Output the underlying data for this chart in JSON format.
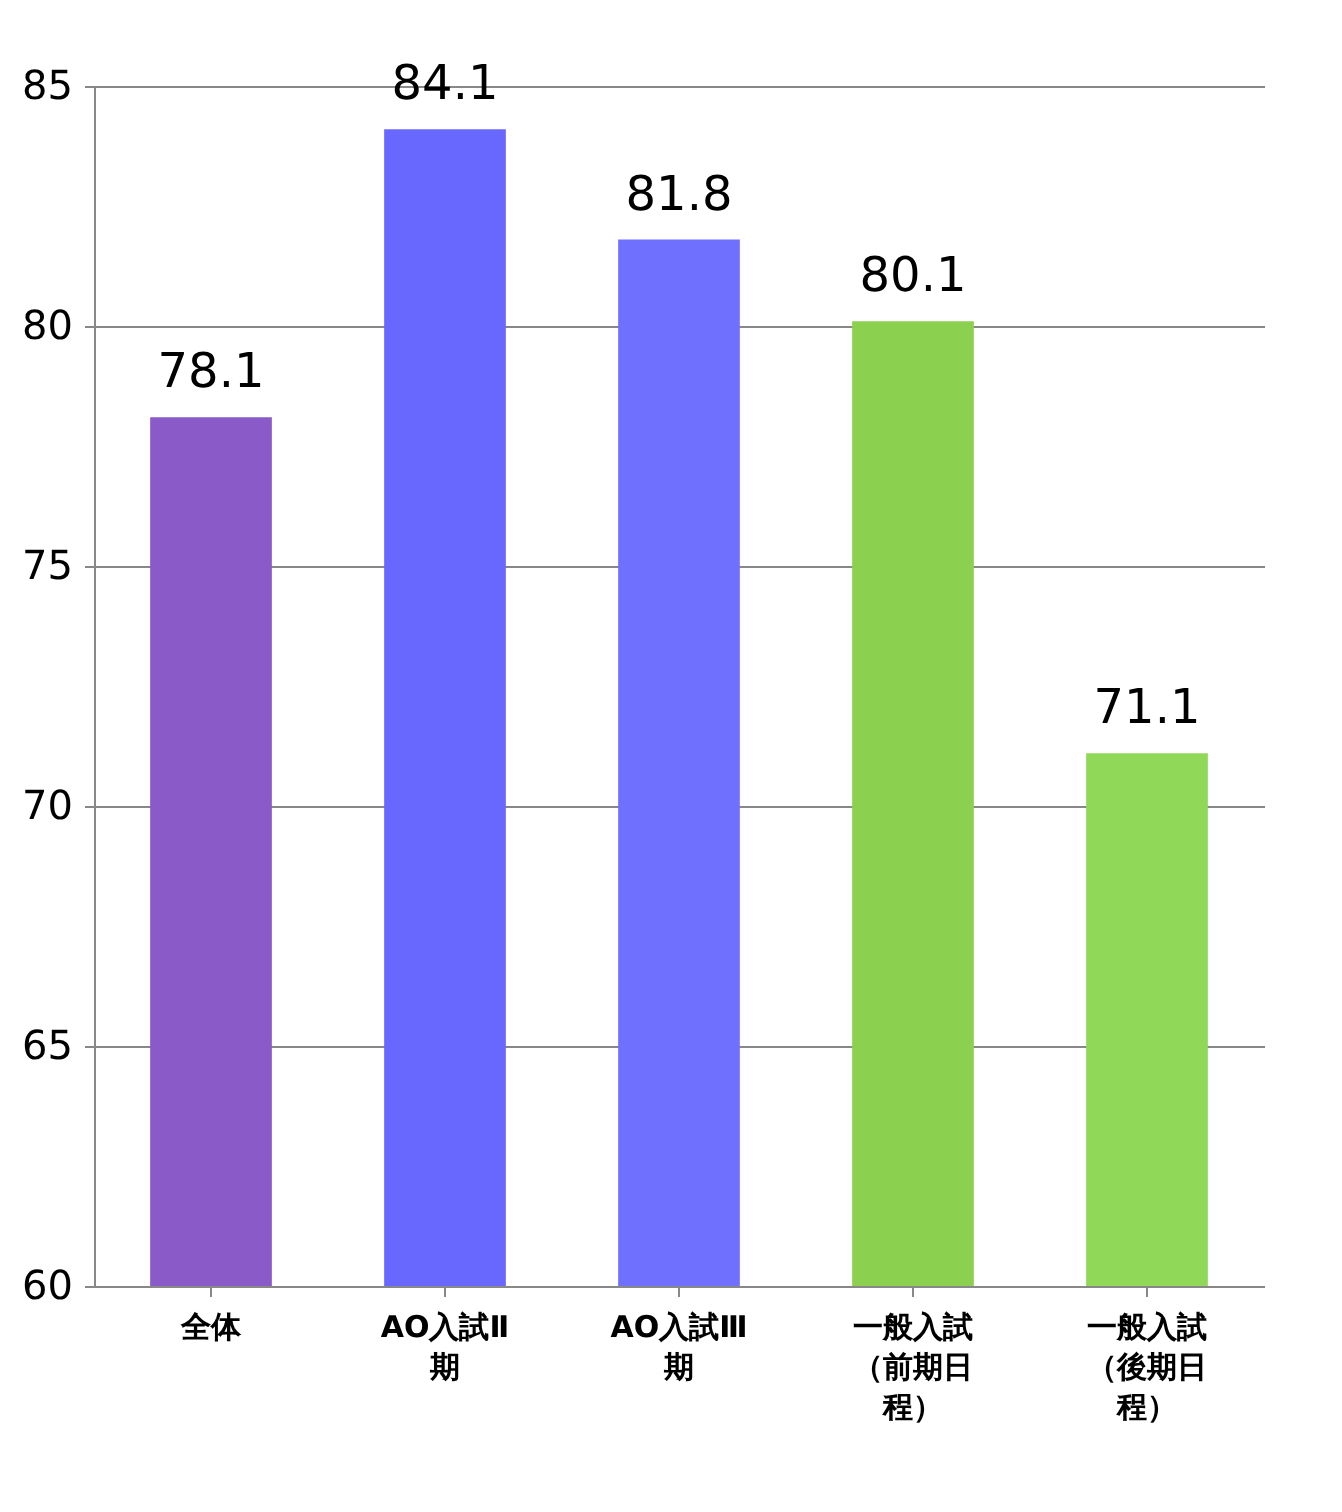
{
  "chart_data": {
    "type": "bar",
    "categories": [
      "全体",
      "AO入試Ⅱ期",
      "AO入試Ⅲ期",
      "一般入試（前期日程）",
      "一般入試（後期日程）"
    ],
    "values": [
      78.1,
      84.1,
      81.8,
      80.1,
      71.1
    ],
    "colors": [
      "#8a5ac8",
      "#6868ff",
      "#7070ff",
      "#8cd050",
      "#90d858"
    ],
    "ylim": [
      60,
      85
    ],
    "yticks": [
      60,
      65,
      70,
      75,
      80,
      85
    ],
    "grid": "y",
    "data_labels": true
  }
}
